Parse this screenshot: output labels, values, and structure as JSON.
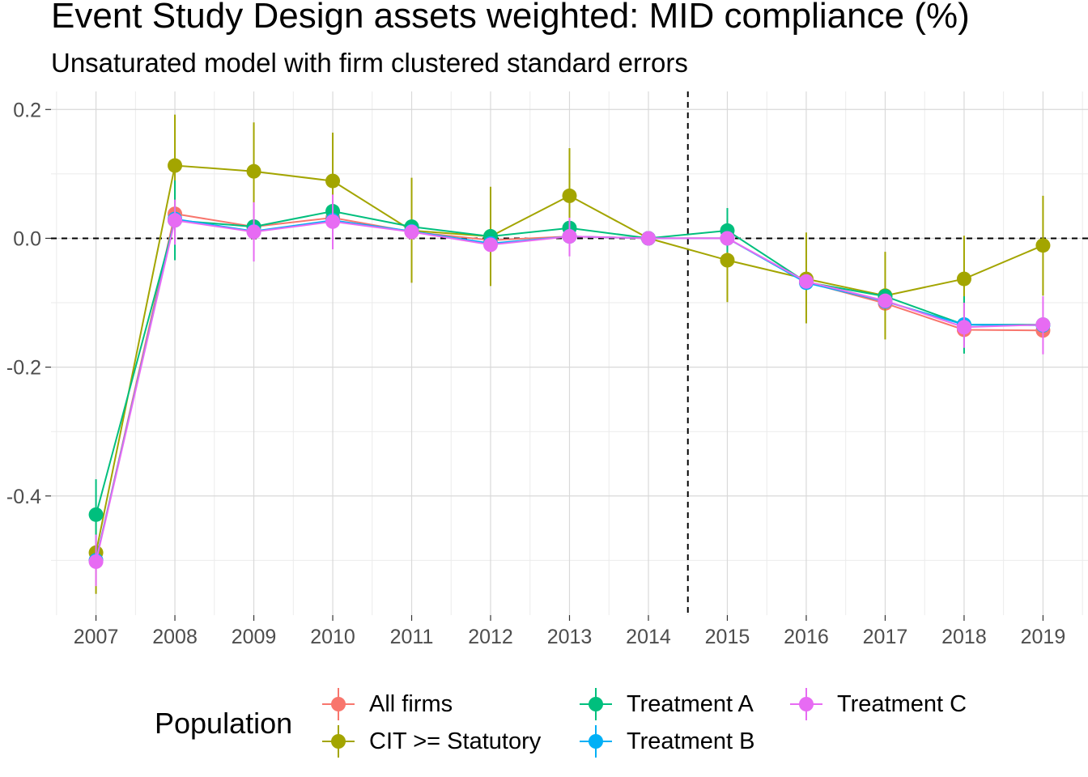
{
  "chart_data": {
    "type": "line",
    "title": "Event Study Design assets weighted: MID compliance (%)",
    "subtitle": "Unsaturated model with firm clustered standard errors",
    "xlabel": "",
    "ylabel": "",
    "x": [
      2007,
      2008,
      2009,
      2010,
      2011,
      2012,
      2013,
      2014,
      2015,
      2016,
      2017,
      2018,
      2019
    ],
    "y_ticks": [
      0.2,
      0.0,
      -0.2,
      -0.4
    ],
    "y_tick_labels": [
      "0.2",
      "0.0",
      "-0.2",
      "-0.4"
    ],
    "ylim": [
      -0.585,
      0.228
    ],
    "xlim": [
      2006.43,
      2019.57
    ],
    "grid": true,
    "reference_lines": {
      "horizontal_y": 0.0,
      "vertical_x": 2014.5,
      "style": "dashed"
    },
    "legend": {
      "title": "Population",
      "position": "bottom"
    },
    "series": [
      {
        "name": "All firms",
        "color": "#F8766D",
        "values": [
          -0.5,
          0.038,
          0.018,
          0.032,
          0.01,
          -0.003,
          0.003,
          0.0,
          0.0,
          -0.068,
          -0.101,
          -0.142,
          -0.143
        ],
        "ci_low": null,
        "ci_high": null
      },
      {
        "name": "CIT >= Statutory",
        "color": "#A3A500",
        "values": [
          -0.488,
          0.113,
          0.104,
          0.089,
          0.012,
          0.003,
          0.066,
          0.0,
          -0.034,
          -0.063,
          -0.089,
          -0.063,
          -0.011
        ],
        "ci_low": [
          -0.552,
          0.034,
          0.028,
          0.014,
          -0.069,
          -0.074,
          -0.009,
          0.0,
          -0.099,
          -0.132,
          -0.157,
          -0.131,
          -0.089
        ],
        "ci_high": [
          -0.424,
          0.192,
          0.18,
          0.164,
          0.094,
          0.08,
          0.14,
          0.0,
          0.031,
          0.009,
          -0.021,
          0.004,
          0.066
        ]
      },
      {
        "name": "Treatment A",
        "color": "#00BF7D",
        "values": [
          -0.429,
          0.028,
          0.018,
          0.042,
          0.018,
          0.003,
          0.016,
          0.0,
          0.012,
          -0.068,
          -0.09,
          -0.134,
          -0.134
        ],
        "ci_low": [
          -0.484,
          -0.034,
          null,
          null,
          null,
          null,
          null,
          0.0,
          -0.022,
          null,
          null,
          -0.179,
          null
        ],
        "ci_high": [
          -0.374,
          0.09,
          null,
          null,
          null,
          null,
          null,
          0.0,
          0.047,
          null,
          null,
          -0.09,
          null
        ]
      },
      {
        "name": "Treatment B",
        "color": "#00B0F6",
        "values": [
          -0.5,
          0.03,
          0.011,
          0.028,
          0.011,
          -0.008,
          0.003,
          0.0,
          0.0,
          -0.069,
          -0.098,
          -0.134,
          -0.135
        ],
        "ci_low": null,
        "ci_high": null
      },
      {
        "name": "Treatment C",
        "color": "#E76BF3",
        "values": [
          -0.502,
          0.028,
          0.01,
          0.026,
          0.01,
          -0.01,
          0.003,
          0.0,
          0.0,
          -0.067,
          -0.097,
          -0.138,
          -0.134
        ],
        "ci_low": [
          -0.54,
          -0.01,
          -0.036,
          -0.017,
          null,
          null,
          -0.028,
          0.0,
          null,
          null,
          null,
          -0.17,
          -0.18
        ],
        "ci_high": [
          -0.46,
          0.06,
          0.056,
          0.068,
          null,
          null,
          0.032,
          0.0,
          null,
          null,
          null,
          -0.1,
          -0.09
        ]
      }
    ]
  }
}
